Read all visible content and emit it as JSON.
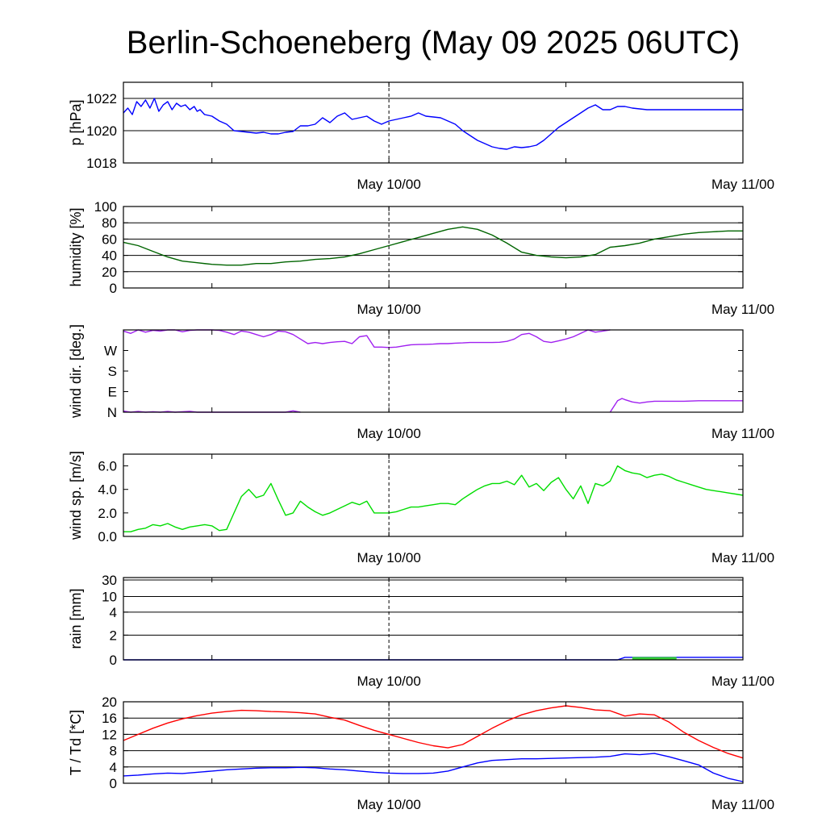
{
  "title": "Berlin-Schoeneberg (May 09 2025 06UTC)",
  "x_tick_labels": [
    "May 10/00",
    "May 11/00"
  ],
  "colors": {
    "pressure": "#0000ff",
    "humidity": "#006400",
    "wind_dir": "#a020f0",
    "wind_speed": "#00dd00",
    "rain_total": "#0000ff",
    "rain_bar": "#33cc33",
    "temperature": "#ff0000",
    "dewpoint": "#0000ff"
  },
  "chart_data": [
    {
      "type": "line",
      "panel": "pressure",
      "ylabel": "p [hPa]",
      "ylim": [
        1018,
        1023
      ],
      "yticks": [
        "1018",
        "1020",
        "1022"
      ],
      "grid": true,
      "series": [
        {
          "color": "pressure",
          "x": [
            0,
            0.3,
            0.6,
            0.9,
            1.2,
            1.5,
            1.8,
            2.1,
            2.4,
            2.7,
            3.0,
            3.3,
            3.6,
            3.9,
            4.2,
            4.5,
            4.8,
            5.0,
            5.2,
            5.5,
            6.0,
            6.5,
            7.0,
            7.5,
            8.0,
            8.5,
            9.0,
            9.5,
            10.0,
            10.5,
            11.0,
            11.5,
            12.0,
            12.5,
            13.0,
            13.5,
            14.0,
            14.5,
            15.0,
            15.5,
            16.0,
            16.5,
            17.0,
            17.5,
            18.0,
            18.5,
            19.0,
            19.5,
            20.0,
            20.5,
            21.0,
            21.5,
            22.0,
            22.5,
            23.0,
            23.5,
            24.0,
            24.5,
            25.0,
            25.5,
            26.0,
            26.5,
            27.0,
            27.5,
            28.0,
            28.5,
            29.0,
            29.5,
            30.0,
            30.5,
            31.0,
            31.5,
            32.0,
            32.5,
            33.0,
            33.5,
            34.0,
            34.5,
            35.0,
            35.5,
            36.0,
            36.5,
            37.0,
            37.5,
            38.0,
            38.5,
            39.0,
            39.5,
            40.0,
            40.5,
            41.0,
            41.5,
            42.0
          ],
          "y": [
            1021.1,
            1021.4,
            1021.0,
            1021.8,
            1021.5,
            1021.9,
            1021.4,
            1022.0,
            1021.2,
            1021.6,
            1021.8,
            1021.3,
            1021.7,
            1021.5,
            1021.6,
            1021.3,
            1021.5,
            1021.2,
            1021.3,
            1021.0,
            1020.9,
            1020.6,
            1020.4,
            1020.0,
            1019.95,
            1019.9,
            1019.85,
            1019.9,
            1019.8,
            1019.8,
            1019.9,
            1019.95,
            1020.3,
            1020.3,
            1020.4,
            1020.8,
            1020.5,
            1020.9,
            1021.1,
            1020.7,
            1020.8,
            1020.9,
            1020.6,
            1020.4,
            1020.6,
            1020.7,
            1020.8,
            1020.9,
            1021.1,
            1020.9,
            1020.85,
            1020.8,
            1020.6,
            1020.4,
            1020.0,
            1019.7,
            1019.4,
            1019.2,
            1019.0,
            1018.9,
            1018.85,
            1019.0,
            1018.95,
            1019.0,
            1019.1,
            1019.4,
            1019.8,
            1020.2,
            1020.5,
            1020.8,
            1021.1,
            1021.4,
            1021.6,
            1021.3,
            1021.3,
            1021.5,
            1021.5,
            1021.4,
            1021.35,
            1021.3,
            1021.3,
            1021.3,
            1021.3,
            1021.3,
            1021.3,
            1021.3,
            1021.3,
            1021.3,
            1021.3,
            1021.3,
            1021.3,
            1021.3,
            1021.3
          ]
        }
      ]
    },
    {
      "type": "line",
      "panel": "humidity",
      "ylabel": "humidity [%]",
      "ylim": [
        0,
        100
      ],
      "yticks": [
        "0",
        "20",
        "40",
        "60",
        "80",
        "100"
      ],
      "grid": true,
      "series": [
        {
          "color": "humidity",
          "x": [
            0,
            1,
            2,
            3,
            4,
            5,
            6,
            7,
            8,
            9,
            10,
            11,
            12,
            13,
            14,
            15,
            16,
            17,
            18,
            19,
            20,
            21,
            22,
            23,
            24,
            25,
            26,
            27,
            28,
            29,
            30,
            31,
            32,
            33,
            34,
            35,
            36,
            37,
            38,
            39,
            40,
            41,
            42
          ],
          "y": [
            56,
            52,
            45,
            38,
            33,
            31,
            29,
            28,
            28,
            30,
            30,
            32,
            33,
            35,
            36,
            38,
            42,
            47,
            52,
            57,
            62,
            67,
            72,
            75,
            72,
            65,
            55,
            44,
            40,
            38,
            37,
            38,
            41,
            50,
            52,
            55,
            60,
            63,
            66,
            68,
            69,
            70,
            70
          ]
        }
      ]
    },
    {
      "type": "line",
      "panel": "wind_direction",
      "ylabel": "wind dir. [deg.]",
      "ylim": [
        0,
        360
      ],
      "yticks": [
        "N",
        "E",
        "S",
        "W"
      ],
      "grid": false,
      "series": [
        {
          "color": "wind_dir",
          "x": [
            0,
            0.5,
            1,
            1.5,
            2,
            2.5,
            3,
            3.5,
            4,
            4.5,
            5,
            5.5,
            6,
            6.5,
            7,
            7.5,
            8,
            8.5,
            9,
            9.5,
            10,
            10.5,
            11,
            11.5,
            12,
            12.5,
            13,
            13.5,
            14,
            14.5,
            15,
            15.5,
            16,
            16.5,
            17,
            17.5,
            18,
            18.5,
            19,
            19.5,
            20,
            20.5,
            21,
            21.5,
            22,
            22.5,
            23,
            23.5,
            24,
            24.5,
            25,
            25.5,
            26,
            26.5,
            27,
            27.5,
            28,
            28.5,
            29,
            29.5,
            30,
            30.5,
            31,
            31.5,
            32,
            32.5,
            33
          ],
          "y": [
            355,
            345,
            360,
            350,
            358,
            355,
            360,
            360,
            352,
            358,
            360,
            360,
            360,
            358,
            350,
            340,
            355,
            350,
            340,
            330,
            340,
            355,
            352,
            340,
            320,
            300,
            305,
            300,
            305,
            308,
            310,
            300,
            330,
            335,
            285,
            285,
            283,
            285,
            290,
            295,
            296,
            297,
            298,
            300,
            300,
            302,
            303,
            305,
            305,
            305,
            305,
            306,
            310,
            320,
            340,
            345,
            330,
            310,
            305,
            312,
            320,
            330,
            345,
            360,
            350,
            355,
            360
          ]
        },
        {
          "color": "wind_dir",
          "x": [
            0,
            0.5,
            1,
            1.5,
            2,
            2.5,
            3,
            3.5,
            4,
            4.5,
            5,
            5.5,
            6,
            6.5,
            7,
            7.5,
            8,
            8.5,
            9,
            9.5,
            10,
            10.5,
            11,
            11.5,
            12
          ],
          "y": [
            5,
            0,
            3,
            0,
            2,
            0,
            3,
            0,
            2,
            4,
            0,
            0,
            0,
            0,
            0,
            0,
            0,
            0,
            0,
            0,
            0,
            0,
            0,
            6,
            0
          ]
        },
        {
          "color": "wind_dir",
          "x": [
            33,
            33.2,
            33.5,
            33.8,
            34,
            34.5,
            35,
            35.5,
            36,
            36.5,
            37,
            38,
            39,
            40,
            41,
            42
          ],
          "y": [
            0,
            20,
            50,
            60,
            55,
            45,
            40,
            45,
            48,
            48,
            48,
            48,
            50,
            50,
            50,
            50
          ]
        }
      ]
    },
    {
      "type": "line",
      "panel": "wind_speed",
      "ylabel": "wind sp. [m/s]",
      "ylim": [
        0,
        7
      ],
      "yticks": [
        "0.0",
        "2.0",
        "4.0",
        "6.0"
      ],
      "grid": false,
      "series": [
        {
          "color": "wind_speed",
          "x": [
            0,
            0.5,
            1,
            1.5,
            2,
            2.5,
            3,
            3.5,
            4,
            4.5,
            5,
            5.5,
            6,
            6.5,
            7,
            7.5,
            8,
            8.5,
            9,
            9.5,
            10,
            10.5,
            11,
            11.5,
            12,
            12.5,
            13,
            13.5,
            14,
            14.5,
            15,
            15.5,
            16,
            16.5,
            17,
            17.5,
            18,
            18.5,
            19,
            19.5,
            20,
            20.5,
            21,
            21.5,
            22,
            22.5,
            23,
            23.5,
            24,
            24.5,
            25,
            25.5,
            26,
            26.5,
            27,
            27.5,
            28,
            28.5,
            29,
            29.5,
            30,
            30.5,
            31,
            31.5,
            32,
            32.5,
            33,
            33.5,
            34,
            34.5,
            35,
            35.5,
            36,
            36.5,
            37,
            37.5,
            38,
            38.5,
            39,
            39.5,
            40,
            40.5,
            41,
            41.5,
            42
          ],
          "y": [
            0.4,
            0.4,
            0.6,
            0.7,
            1.0,
            0.9,
            1.1,
            0.8,
            0.6,
            0.8,
            0.9,
            1.0,
            0.9,
            0.5,
            0.6,
            2.0,
            3.4,
            4.0,
            3.3,
            3.5,
            4.5,
            3.1,
            1.8,
            2.0,
            3.0,
            2.5,
            2.1,
            1.8,
            2.0,
            2.3,
            2.6,
            2.9,
            2.7,
            3.0,
            2.0,
            2.0,
            2.0,
            2.1,
            2.3,
            2.5,
            2.5,
            2.6,
            2.7,
            2.8,
            2.8,
            2.7,
            3.2,
            3.6,
            4.0,
            4.3,
            4.5,
            4.5,
            4.7,
            4.4,
            5.2,
            4.2,
            4.5,
            3.9,
            4.6,
            5.0,
            4.0,
            3.2,
            4.3,
            2.8,
            4.5,
            4.3,
            4.7,
            6.0,
            5.6,
            5.4,
            5.3,
            5.0,
            5.2,
            5.3,
            5.1,
            4.8,
            4.6,
            4.4,
            4.2,
            4.0,
            3.9,
            3.8,
            3.7,
            3.6,
            3.5
          ]
        }
      ]
    },
    {
      "type": "area",
      "panel": "rain",
      "ylabel": "rain [mm]",
      "yticks": [
        "0",
        "2",
        "4",
        "10",
        "30"
      ],
      "grid": true,
      "series": [
        {
          "color": "rain_total",
          "x": [
            0,
            30,
            33.5,
            34,
            42
          ],
          "y": [
            0,
            0,
            0,
            0.2,
            0.2
          ]
        },
        {
          "color": "rain_bar",
          "type": "bar",
          "x": [
            34.5,
            37.5
          ],
          "y": [
            0.1,
            0.1
          ]
        }
      ]
    },
    {
      "type": "line",
      "panel": "temperature",
      "ylabel": "T / Td [*C]",
      "ylim": [
        0,
        20
      ],
      "yticks": [
        "0",
        "4",
        "8",
        "12",
        "16",
        "20"
      ],
      "grid": true,
      "series": [
        {
          "color": "temperature",
          "x": [
            0,
            1,
            2,
            3,
            4,
            5,
            6,
            7,
            8,
            9,
            10,
            11,
            12,
            13,
            14,
            15,
            16,
            17,
            18,
            19,
            20,
            21,
            22,
            23,
            24,
            25,
            26,
            27,
            28,
            29,
            30,
            31,
            32,
            33,
            34,
            35,
            36,
            37,
            38,
            39,
            40,
            41,
            42
          ],
          "y": [
            10.5,
            12.0,
            13.5,
            14.8,
            15.8,
            16.6,
            17.2,
            17.6,
            17.9,
            17.8,
            17.6,
            17.5,
            17.3,
            17.0,
            16.2,
            15.5,
            14.2,
            13.0,
            12.0,
            11.0,
            10.0,
            9.2,
            8.7,
            9.5,
            11.5,
            13.5,
            15.3,
            16.8,
            17.8,
            18.5,
            19.0,
            18.6,
            18.0,
            17.8,
            16.5,
            17.0,
            16.8,
            15.0,
            12.5,
            10.5,
            8.8,
            7.3,
            6.2
          ]
        },
        {
          "color": "dewpoint",
          "x": [
            0,
            1,
            2,
            3,
            4,
            5,
            6,
            7,
            8,
            9,
            10,
            11,
            12,
            13,
            14,
            15,
            16,
            17,
            18,
            19,
            20,
            21,
            22,
            23,
            24,
            25,
            26,
            27,
            28,
            29,
            30,
            31,
            32,
            33,
            34,
            35,
            36,
            37,
            38,
            39,
            40,
            41,
            42
          ],
          "y": [
            1.8,
            2.0,
            2.3,
            2.5,
            2.4,
            2.7,
            3.0,
            3.3,
            3.5,
            3.7,
            3.8,
            3.8,
            3.9,
            3.8,
            3.5,
            3.3,
            3.0,
            2.7,
            2.5,
            2.4,
            2.4,
            2.5,
            3.0,
            4.0,
            5.0,
            5.6,
            5.8,
            6.0,
            6.0,
            6.1,
            6.2,
            6.3,
            6.4,
            6.6,
            7.2,
            7.0,
            7.3,
            6.5,
            5.5,
            4.5,
            2.5,
            1.2,
            0.4
          ]
        }
      ]
    }
  ]
}
